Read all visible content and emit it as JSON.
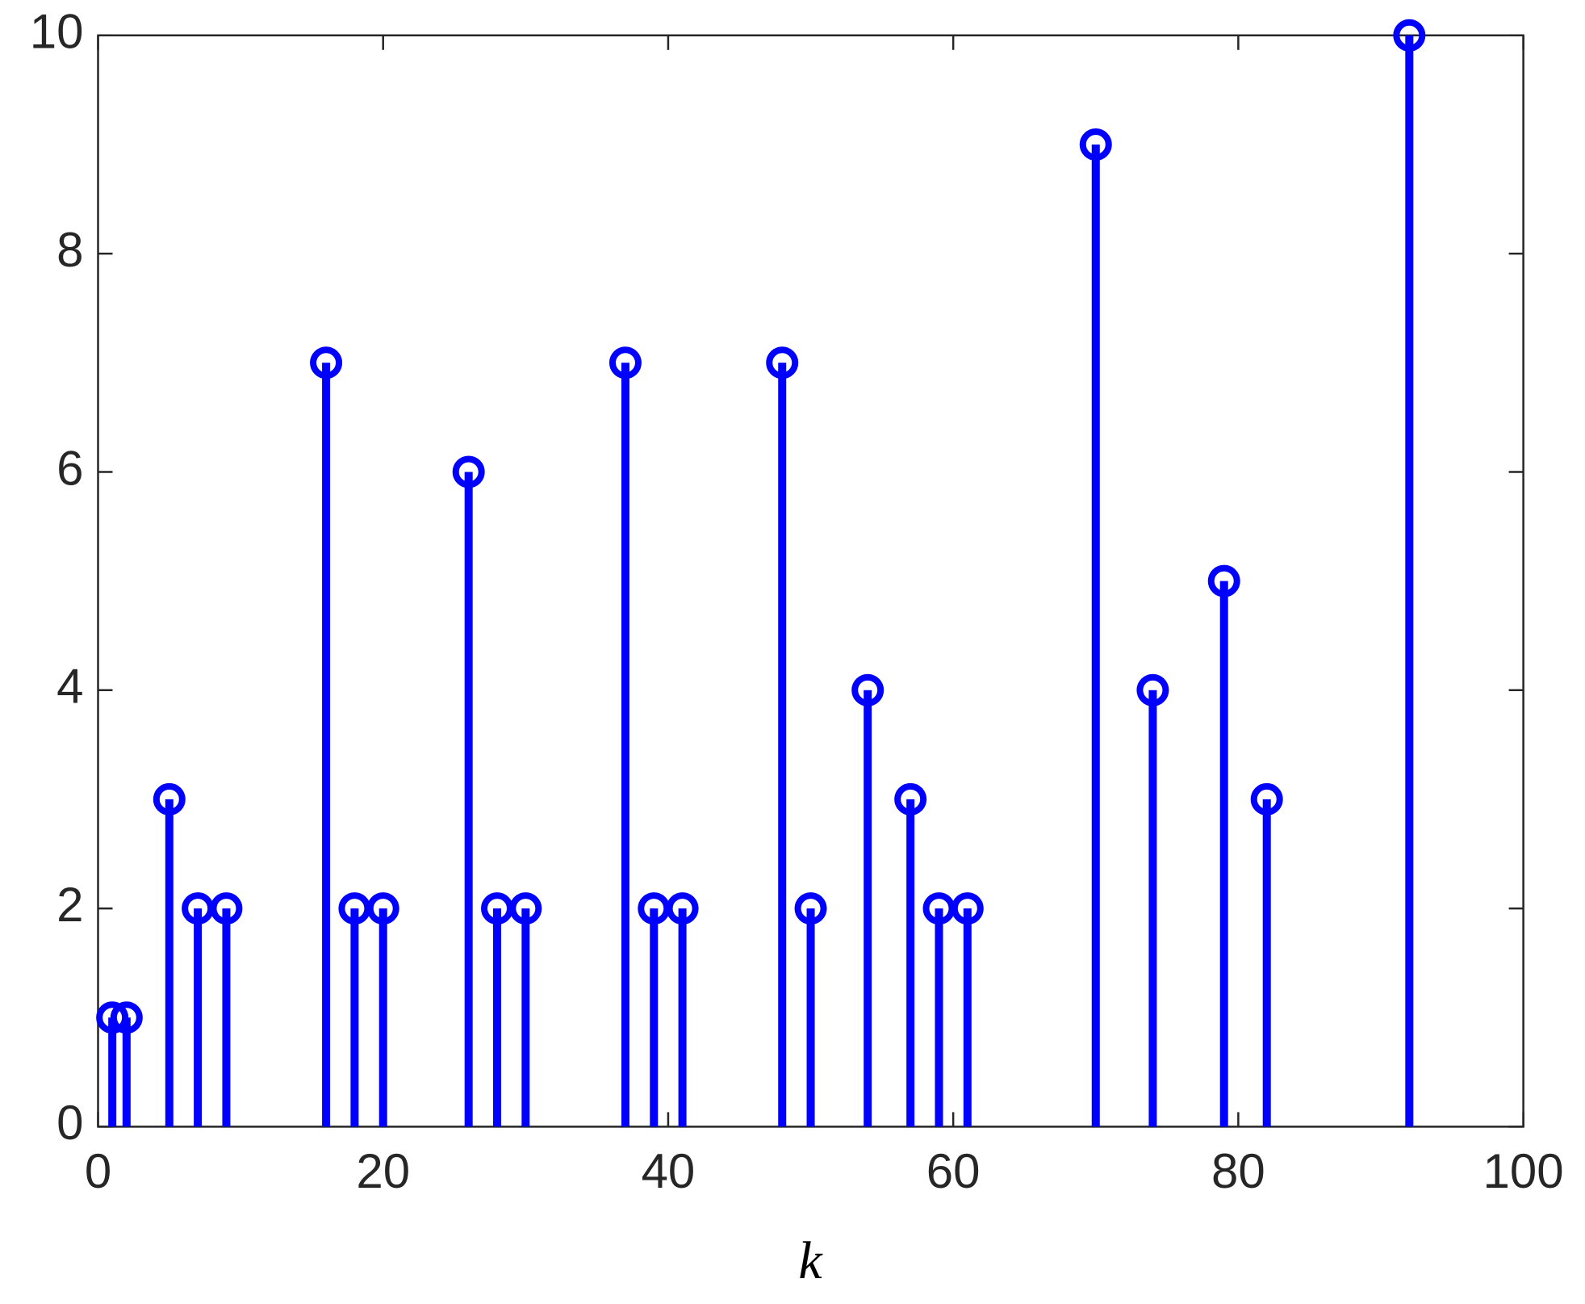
{
  "chart_data": {
    "type": "stem",
    "xlabel": "k",
    "x": [
      1,
      2,
      5,
      7,
      9,
      16,
      18,
      20,
      26,
      28,
      30,
      37,
      39,
      41,
      48,
      50,
      54,
      57,
      59,
      61,
      70,
      74,
      79,
      82,
      92
    ],
    "values": [
      1,
      1,
      3,
      2,
      2,
      7,
      2,
      2,
      6,
      2,
      2,
      7,
      2,
      2,
      7,
      2,
      4,
      3,
      2,
      2,
      9,
      4,
      5,
      3,
      10
    ],
    "color": "#0000ff",
    "xlim": [
      0,
      100
    ],
    "xticks": [
      0,
      20,
      40,
      60,
      80,
      100
    ],
    "ylim": [
      0,
      10
    ],
    "yticks": [
      0,
      2,
      4,
      6,
      8,
      10
    ],
    "box": true
  }
}
